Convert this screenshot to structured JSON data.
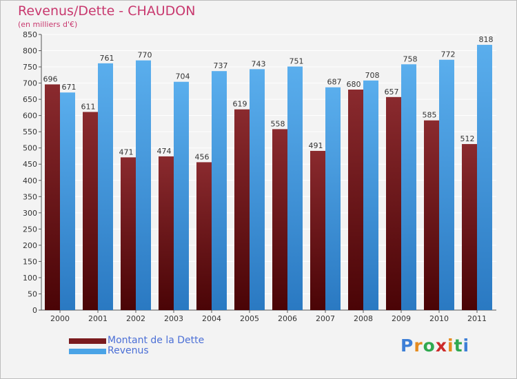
{
  "header": {
    "title": "Revenus/Dette - CHAUDON",
    "subtitle": "(en milliers d'€)"
  },
  "colors": {
    "dette": "#7a1a1e",
    "revenus": "#4aa3e6",
    "title": "#c8386e",
    "legend_text": "#4b6fd6"
  },
  "chart_data": {
    "type": "bar",
    "title": "Revenus/Dette - CHAUDON",
    "ylabel": "(en milliers d'€)",
    "ylim": [
      0,
      850
    ],
    "ytick_step": 50,
    "grid": true,
    "legend_position": "bottom-left",
    "categories": [
      "2000",
      "2001",
      "2002",
      "2003",
      "2004",
      "2005",
      "2006",
      "2007",
      "2008",
      "2009",
      "2010",
      "2011"
    ],
    "series": [
      {
        "name": "Montant de la Dette",
        "values": [
          696,
          611,
          471,
          474,
          456,
          619,
          558,
          491,
          680,
          657,
          585,
          512
        ]
      },
      {
        "name": "Revenus",
        "values": [
          671,
          761,
          770,
          704,
          737,
          743,
          751,
          687,
          708,
          758,
          772,
          818
        ]
      }
    ]
  },
  "legend": {
    "dette_label": "Montant de la Dette",
    "revenus_label": "Revenus"
  },
  "logo": {
    "letters": [
      "P",
      "r",
      "o",
      "x",
      "i",
      "t",
      "i"
    ],
    "colors": [
      "#3d7fd6",
      "#e58b1f",
      "#2fa84f",
      "#cc2a2a",
      "#e58b1f",
      "#2fa84f",
      "#3d7fd6"
    ]
  }
}
